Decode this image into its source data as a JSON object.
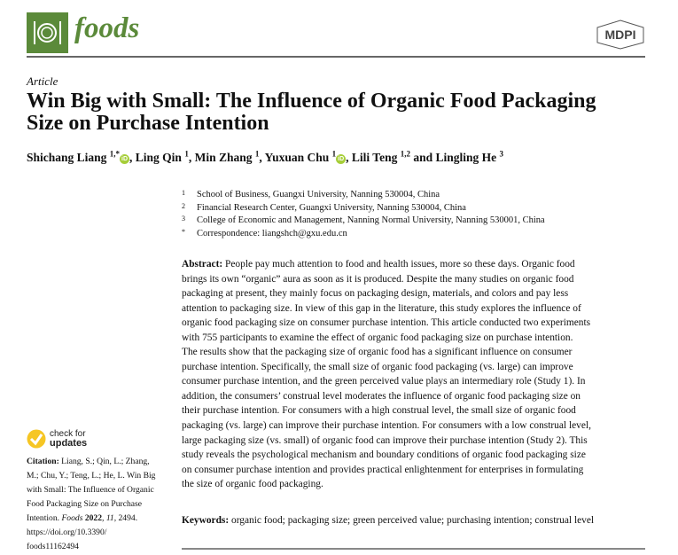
{
  "header": {
    "journal": "foods",
    "publisher": "MDPI",
    "brand_color": "#5b8a3a"
  },
  "article_type": "Article",
  "title_lines": [
    "Win Big with Small: The Influence of Organic Food Packaging",
    "Size on Purchase Intention"
  ],
  "authors": [
    {
      "name": "Shichang Liang",
      "sup": "1,*",
      "orcid": true,
      "sep": ", "
    },
    {
      "name": "Ling Qin",
      "sup": "1",
      "sep": ", "
    },
    {
      "name": "Min Zhang",
      "sup": "1",
      "sep": ", "
    },
    {
      "name": "Yuxuan Chu",
      "sup": "1",
      "orcid": true,
      "sep": ", "
    },
    {
      "name": "Lili Teng",
      "sup": "1,2",
      "sep": " and "
    },
    {
      "name": "Lingling He",
      "sup": "3",
      "sep": ""
    }
  ],
  "affiliations": [
    {
      "n": "1",
      "text": "School of Business, Guangxi University, Nanning 530004, China"
    },
    {
      "n": "2",
      "text": "Financial Research Center, Guangxi University, Nanning 530004, China"
    },
    {
      "n": "3",
      "text": "College of Economic and Management, Nanning Normal University, Nanning 530001, China"
    },
    {
      "n": "*",
      "text": "Correspondence: liangshch@gxu.edu.cn"
    }
  ],
  "abstract": {
    "label": "Abstract:",
    "lines": [
      " People pay much attention to food and health issues, more so these days. Organic food",
      "brings its own “organic” aura as soon as it is produced. Despite the many studies on organic food",
      "packaging at present, they mainly focus on packaging design, materials, and colors and pay less",
      "attention to packaging size. In view of this gap in the literature, this study explores the influence of",
      "organic food packaging size on consumer purchase intention. This article conducted two experiments",
      "with 755 participants to examine the effect of organic food packaging size on purchase intention.",
      "The results show that the packaging size of organic food has a significant influence on consumer",
      "purchase intention. Specifically, the small size of organic food packaging (vs. large) can improve",
      "consumer purchase intention, and the green perceived value plays an intermediary role (Study 1). In",
      "addition, the consumers’ construal level moderates the influence of organic food packaging size on",
      "their purchase intention. For consumers with a high construal level, the small size of organic food",
      "packaging (vs. large) can improve their purchase intention. For consumers with a low construal level,",
      "large packaging size (vs. small) of organic food can improve their purchase intention (Study 2). This",
      "study reveals the psychological mechanism and boundary conditions of organic food packaging size",
      "on consumer purchase intention and provides practical enlightenment for enterprises in formulating",
      "the size of organic food packaging."
    ]
  },
  "keywords": {
    "label": "Keywords:",
    "text": " organic food; packaging size; green perceived value; purchasing intention; construal level"
  },
  "check_updates": {
    "line1": "check for",
    "line2": "updates"
  },
  "citation": {
    "label": "Citation:",
    "lines": [
      " Liang, S.; Qin, L.; Zhang,",
      "M.; Chu, Y.; Teng, L.; He, L. Win Big",
      "with Small: The Influence of Organic",
      "Food Packaging Size on Purchase"
    ],
    "line5_pre": "Intention. ",
    "journal": "Foods",
    "year": "2022",
    "volume": "11",
    "page": ", 2494.",
    "doi_lines": [
      "https://doi.org/10.3390/",
      "foods11162494"
    ]
  }
}
